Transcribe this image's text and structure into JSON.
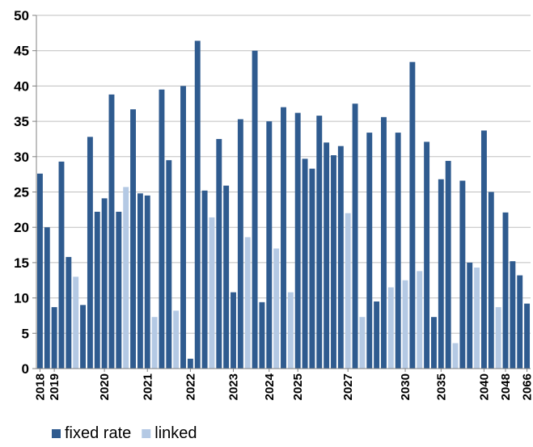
{
  "chart_data": {
    "type": "bar",
    "title": "",
    "xlabel": "",
    "ylabel": "",
    "ylim": [
      0,
      50
    ],
    "yticks": [
      0,
      5,
      10,
      15,
      20,
      25,
      30,
      35,
      40,
      45,
      50
    ],
    "grid": true,
    "legend": "bottom-left",
    "colors": {
      "fixed rate": "#2f5b8f",
      "linked": "#b4c9e4"
    },
    "bars": [
      {
        "series": "fixed rate",
        "value": 27.6
      },
      {
        "series": "fixed rate",
        "value": 20.0
      },
      {
        "series": "fixed rate",
        "value": 8.7
      },
      {
        "series": "fixed rate",
        "value": 29.3
      },
      {
        "series": "fixed rate",
        "value": 15.8
      },
      {
        "series": "linked",
        "value": 13.0
      },
      {
        "series": "fixed rate",
        "value": 9.0
      },
      {
        "series": "fixed rate",
        "value": 32.8
      },
      {
        "series": "fixed rate",
        "value": 22.2
      },
      {
        "series": "fixed rate",
        "value": 24.1
      },
      {
        "series": "fixed rate",
        "value": 38.8
      },
      {
        "series": "fixed rate",
        "value": 22.2
      },
      {
        "series": "linked",
        "value": 25.7
      },
      {
        "series": "fixed rate",
        "value": 36.7
      },
      {
        "series": "fixed rate",
        "value": 24.8
      },
      {
        "series": "fixed rate",
        "value": 24.5
      },
      {
        "series": "linked",
        "value": 7.3
      },
      {
        "series": "fixed rate",
        "value": 39.5
      },
      {
        "series": "fixed rate",
        "value": 29.5
      },
      {
        "series": "linked",
        "value": 8.2
      },
      {
        "series": "fixed rate",
        "value": 40.0
      },
      {
        "series": "fixed rate",
        "value": 1.4
      },
      {
        "series": "fixed rate",
        "value": 46.4
      },
      {
        "series": "fixed rate",
        "value": 25.2
      },
      {
        "series": "linked",
        "value": 21.4
      },
      {
        "series": "fixed rate",
        "value": 32.5
      },
      {
        "series": "fixed rate",
        "value": 25.9
      },
      {
        "series": "fixed rate",
        "value": 10.8
      },
      {
        "series": "fixed rate",
        "value": 35.3
      },
      {
        "series": "linked",
        "value": 18.6
      },
      {
        "series": "fixed rate",
        "value": 45.0
      },
      {
        "series": "fixed rate",
        "value": 9.4
      },
      {
        "series": "fixed rate",
        "value": 35.0
      },
      {
        "series": "linked",
        "value": 17.0
      },
      {
        "series": "fixed rate",
        "value": 37.0
      },
      {
        "series": "linked",
        "value": 10.8
      },
      {
        "series": "fixed rate",
        "value": 36.2
      },
      {
        "series": "fixed rate",
        "value": 29.7
      },
      {
        "series": "fixed rate",
        "value": 28.3
      },
      {
        "series": "fixed rate",
        "value": 35.8
      },
      {
        "series": "fixed rate",
        "value": 32.0
      },
      {
        "series": "fixed rate",
        "value": 30.2
      },
      {
        "series": "fixed rate",
        "value": 31.5
      },
      {
        "series": "linked",
        "value": 22.0
      },
      {
        "series": "fixed rate",
        "value": 37.5
      },
      {
        "series": "linked",
        "value": 7.3
      },
      {
        "series": "fixed rate",
        "value": 33.4
      },
      {
        "series": "fixed rate",
        "value": 9.5
      },
      {
        "series": "fixed rate",
        "value": 35.6
      },
      {
        "series": "linked",
        "value": 11.5
      },
      {
        "series": "fixed rate",
        "value": 33.4
      },
      {
        "series": "linked",
        "value": 12.5
      },
      {
        "series": "fixed rate",
        "value": 43.4
      },
      {
        "series": "linked",
        "value": 13.8
      },
      {
        "series": "fixed rate",
        "value": 32.1
      },
      {
        "series": "fixed rate",
        "value": 7.3
      },
      {
        "series": "fixed rate",
        "value": 26.8
      },
      {
        "series": "fixed rate",
        "value": 29.4
      },
      {
        "series": "linked",
        "value": 3.6
      },
      {
        "series": "fixed rate",
        "value": 26.6
      },
      {
        "series": "fixed rate",
        "value": 15.0
      },
      {
        "series": "linked",
        "value": 14.3
      },
      {
        "series": "fixed rate",
        "value": 33.7
      },
      {
        "series": "fixed rate",
        "value": 25.0
      },
      {
        "series": "linked",
        "value": 8.7
      },
      {
        "series": "fixed rate",
        "value": 22.1
      },
      {
        "series": "fixed rate",
        "value": 15.2
      },
      {
        "series": "fixed rate",
        "value": 13.2
      },
      {
        "series": "fixed rate",
        "value": 9.2
      }
    ],
    "x_labels": [
      {
        "label": "2018",
        "bar": 0
      },
      {
        "label": "2019",
        "bar": 2
      },
      {
        "label": "2020",
        "bar": 9
      },
      {
        "label": "2021",
        "bar": 15
      },
      {
        "label": "2022",
        "bar": 21
      },
      {
        "label": "2023",
        "bar": 27
      },
      {
        "label": "2024",
        "bar": 32
      },
      {
        "label": "2025",
        "bar": 36
      },
      {
        "label": "2027",
        "bar": 43
      },
      {
        "label": "2030",
        "bar": 51
      },
      {
        "label": "2035",
        "bar": 56
      },
      {
        "label": "2040",
        "bar": 62
      },
      {
        "label": "2048",
        "bar": 65
      },
      {
        "label": "2066",
        "bar": 68
      }
    ],
    "legend_entries": [
      "fixed rate",
      "linked"
    ]
  }
}
